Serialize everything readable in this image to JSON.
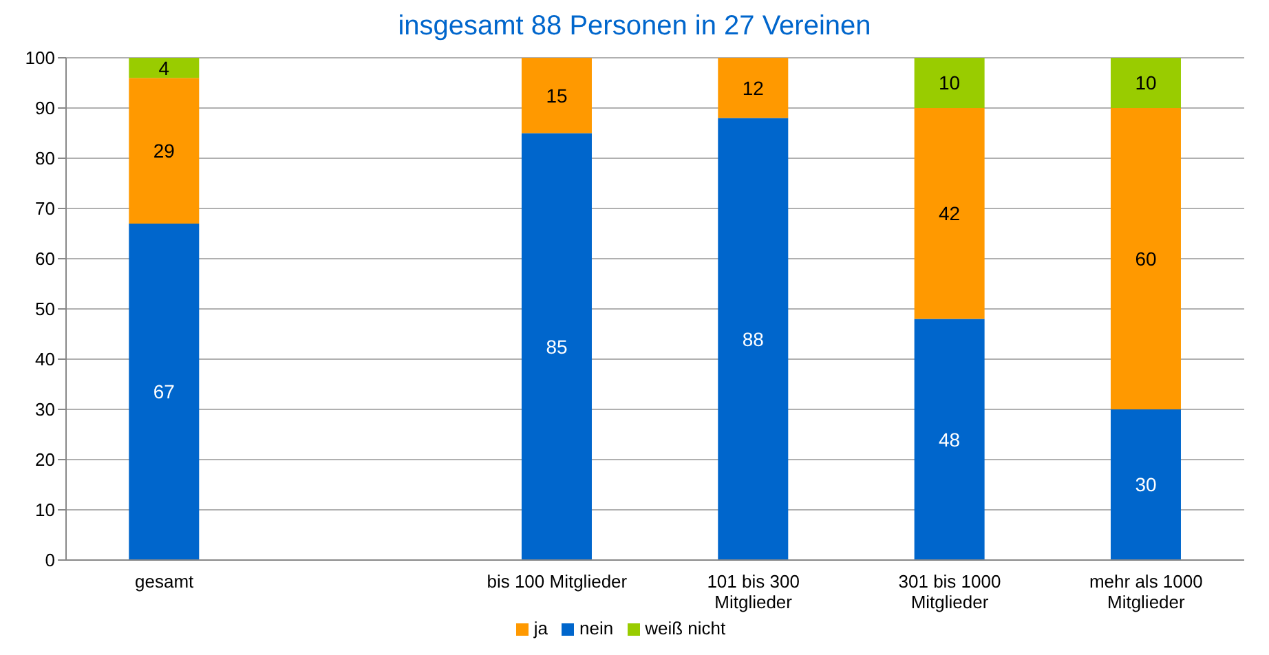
{
  "chart_data": {
    "type": "bar",
    "stacked": true,
    "categories": [
      "gesamt",
      null,
      "bis 100 Mitglieder",
      "101 bis 300 Mitglieder",
      "301 bis 1000 Mitglieder",
      "mehr als 1000 Mitglieder"
    ],
    "series": [
      {
        "name": "nein",
        "color": "#0066cc",
        "values": [
          67,
          null,
          85,
          88,
          48,
          30
        ]
      },
      {
        "name": "ja",
        "color": "#ff9900",
        "values": [
          29,
          null,
          15,
          12,
          42,
          60
        ]
      },
      {
        "name": "weiß nicht",
        "color": "#99cc00",
        "values": [
          4,
          null,
          null,
          null,
          10,
          10
        ]
      }
    ],
    "ylim": [
      0,
      100
    ],
    "yticks": [
      0,
      10,
      20,
      30,
      40,
      50,
      60,
      70,
      80,
      90,
      100
    ],
    "grid": "y",
    "legend": "bottom",
    "data_labels": true,
    "annotations": [
      "insgesamt 88 Personen in 27 Vereinen"
    ]
  }
}
